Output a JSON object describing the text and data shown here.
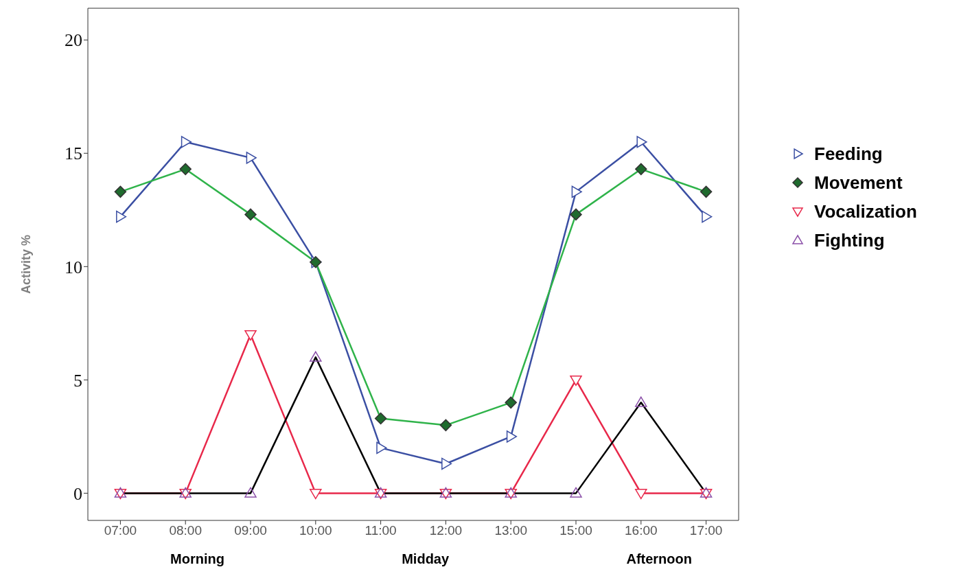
{
  "chart_data": {
    "type": "line",
    "ylabel": "Activity %",
    "categories": [
      "07:00",
      "08:00",
      "09:00",
      "10:00",
      "11:00",
      "12:00",
      "13:00",
      "15:00",
      "16:00",
      "17:00"
    ],
    "series": [
      {
        "name": "Feeding",
        "color": "#3b4fa3",
        "marker": "triangle",
        "values": [
          12.2,
          15.5,
          14.8,
          10.2,
          2.0,
          1.3,
          2.5,
          13.3,
          15.5,
          12.2
        ]
      },
      {
        "name": "Movement",
        "color": "#2fb34a",
        "marker": "diamond",
        "values": [
          13.3,
          14.3,
          12.3,
          10.2,
          3.3,
          3.0,
          4.0,
          12.3,
          14.3,
          13.3
        ]
      },
      {
        "name": "Vocalization",
        "color": "#e8284a",
        "marker": "triangle",
        "values": [
          0,
          0,
          7.0,
          0,
          0,
          0,
          0,
          5.0,
          0,
          0
        ]
      },
      {
        "name": "Fighting",
        "color": "#000000",
        "marker": "triangle",
        "values": [
          0,
          0,
          0,
          6.0,
          0,
          0,
          0,
          0,
          4.0,
          0
        ]
      }
    ],
    "ylim": [
      -1.2,
      21.4
    ],
    "yticks": [
      0,
      5,
      10,
      15,
      20
    ],
    "grid": false,
    "legend": "right",
    "annotations": [
      "Morning",
      "Midday",
      "Afternoon"
    ]
  }
}
